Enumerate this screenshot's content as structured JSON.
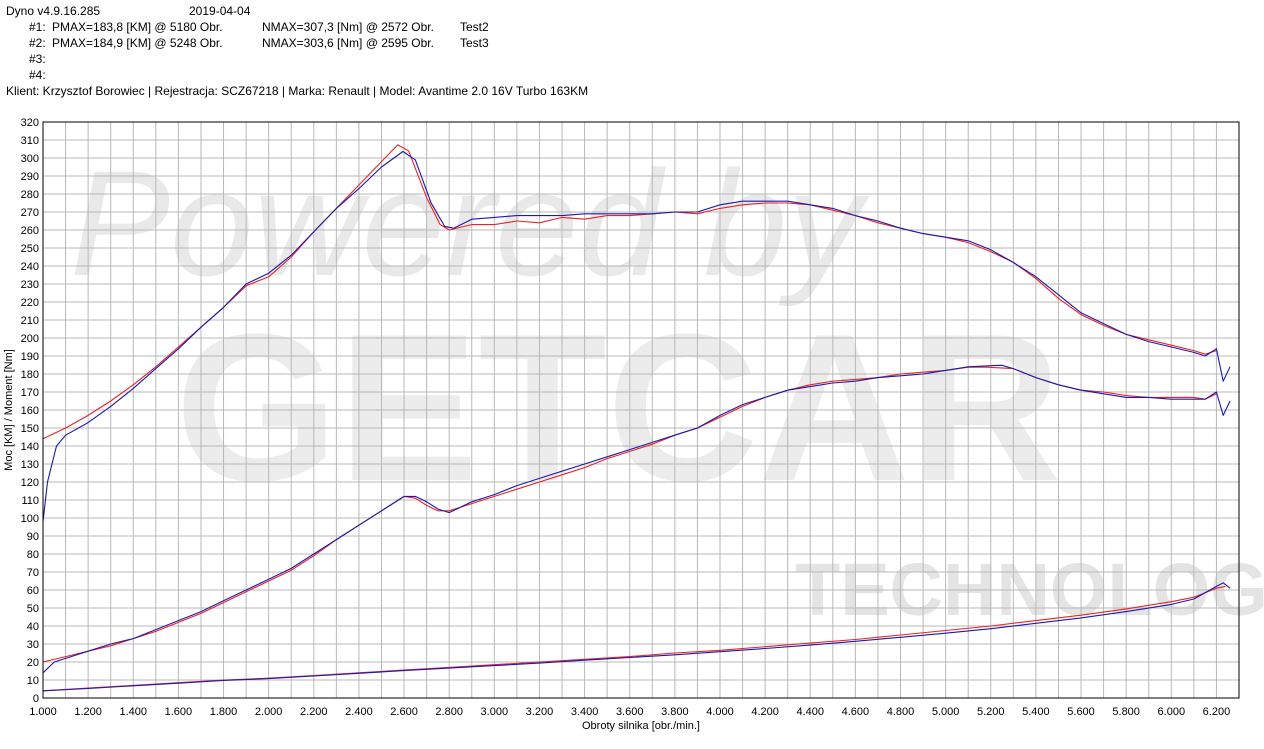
{
  "header": {
    "app_version": "Dyno v4.9.16.285",
    "date": "2019-04-04",
    "runs": [
      {
        "id": "#1:",
        "pmax": "PMAX=183,8 [KM] @ 5180 Obr.",
        "nmax": "NMAX=307,3 [Nm] @ 2572 Obr.",
        "name": "Test2"
      },
      {
        "id": "#2:",
        "pmax": "PMAX=184,9 [KM] @ 5248 Obr.",
        "nmax": "NMAX=303,6 [Nm] @ 2595 Obr.",
        "name": "Test3"
      },
      {
        "id": "#3:",
        "pmax": "",
        "nmax": "",
        "name": ""
      },
      {
        "id": "#4:",
        "pmax": "",
        "nmax": "",
        "name": ""
      }
    ],
    "client_line": "Klient: Krzysztof Borowiec | Rejestracja: SCZ67218 | Marka: Renault | Model: Avantime 2.0 16V Turbo 163KM"
  },
  "watermark": {
    "powered": "Powered by",
    "brand": "GETCAR",
    "tech": "TECHNOLOGY"
  },
  "colors": {
    "red": "#ee2222",
    "blue": "#1a1ab0",
    "grid": "#b8b8b8",
    "frame": "#000000"
  },
  "chart_data": {
    "type": "line",
    "xlabel": "Obroty silnika [obr./min.]",
    "ylabel": "Moc [KM] / Moment [Nm]",
    "xlim": [
      1000,
      6300
    ],
    "ylim": [
      0,
      320
    ],
    "x_ticks": [
      1000,
      1200,
      1400,
      1600,
      1800,
      2000,
      2200,
      2400,
      2600,
      2800,
      3000,
      3200,
      3400,
      3600,
      3800,
      4000,
      4200,
      4400,
      4600,
      4800,
      5000,
      5200,
      5400,
      5600,
      5800,
      6000,
      6200
    ],
    "x_tick_labels": [
      "1.000",
      "1.200",
      "1.400",
      "1.600",
      "1.800",
      "2.000",
      "2.200",
      "2.400",
      "2.600",
      "2.800",
      "3.000",
      "3.200",
      "3.400",
      "3.600",
      "3.800",
      "4.000",
      "4.200",
      "4.400",
      "4.600",
      "4.800",
      "5.000",
      "5.200",
      "5.400",
      "5.600",
      "5.800",
      "6.000",
      "6.200"
    ],
    "y_ticks": [
      0,
      10,
      20,
      30,
      40,
      50,
      60,
      70,
      80,
      90,
      100,
      110,
      120,
      130,
      140,
      150,
      160,
      170,
      180,
      190,
      200,
      210,
      220,
      230,
      240,
      250,
      260,
      270,
      280,
      290,
      300,
      310,
      320
    ],
    "series": [
      {
        "color": "#ee2222",
        "values": [
          [
            1000,
            144
          ],
          [
            1100,
            150
          ],
          [
            1200,
            157
          ],
          [
            1300,
            165
          ],
          [
            1400,
            174
          ],
          [
            1500,
            184
          ],
          [
            1600,
            195
          ],
          [
            1700,
            206
          ],
          [
            1800,
            217
          ],
          [
            1900,
            229
          ],
          [
            2000,
            234
          ],
          [
            2100,
            245
          ],
          [
            2200,
            259
          ],
          [
            2300,
            272
          ],
          [
            2400,
            285
          ],
          [
            2500,
            298
          ],
          [
            2572,
            307.3
          ],
          [
            2620,
            304
          ],
          [
            2700,
            278
          ],
          [
            2760,
            263
          ],
          [
            2800,
            260
          ],
          [
            2900,
            263
          ],
          [
            3000,
            263
          ],
          [
            3100,
            265
          ],
          [
            3200,
            264
          ],
          [
            3300,
            267
          ],
          [
            3400,
            266
          ],
          [
            3500,
            268
          ],
          [
            3600,
            268
          ],
          [
            3700,
            269
          ],
          [
            3800,
            270
          ],
          [
            3900,
            269
          ],
          [
            4000,
            272
          ],
          [
            4100,
            274
          ],
          [
            4200,
            275
          ],
          [
            4300,
            275
          ],
          [
            4400,
            274
          ],
          [
            4500,
            271
          ],
          [
            4600,
            268
          ],
          [
            4700,
            264
          ],
          [
            4800,
            261
          ],
          [
            4900,
            258
          ],
          [
            5000,
            256
          ],
          [
            5100,
            253
          ],
          [
            5200,
            248
          ],
          [
            5300,
            242
          ],
          [
            5400,
            233
          ],
          [
            5500,
            222
          ],
          [
            5600,
            213
          ],
          [
            5700,
            207
          ],
          [
            5800,
            202
          ],
          [
            5900,
            199
          ],
          [
            6000,
            196
          ],
          [
            6100,
            193
          ],
          [
            6150,
            191
          ],
          [
            6200,
            193
          ]
        ]
      },
      {
        "color": "#1a1ab0",
        "values": [
          [
            1000,
            98
          ],
          [
            1020,
            120
          ],
          [
            1060,
            140
          ],
          [
            1100,
            146
          ],
          [
            1200,
            153
          ],
          [
            1300,
            162
          ],
          [
            1400,
            172
          ],
          [
            1500,
            183
          ],
          [
            1600,
            194
          ],
          [
            1700,
            206
          ],
          [
            1800,
            217
          ],
          [
            1900,
            230
          ],
          [
            2000,
            236
          ],
          [
            2100,
            246
          ],
          [
            2200,
            259
          ],
          [
            2300,
            272
          ],
          [
            2400,
            283
          ],
          [
            2500,
            295
          ],
          [
            2595,
            303.6
          ],
          [
            2650,
            299
          ],
          [
            2720,
            275
          ],
          [
            2780,
            262
          ],
          [
            2820,
            261
          ],
          [
            2900,
            266
          ],
          [
            3000,
            267
          ],
          [
            3100,
            268
          ],
          [
            3200,
            268
          ],
          [
            3300,
            268
          ],
          [
            3400,
            269
          ],
          [
            3500,
            269
          ],
          [
            3600,
            269
          ],
          [
            3700,
            269
          ],
          [
            3800,
            270
          ],
          [
            3900,
            270
          ],
          [
            4000,
            274
          ],
          [
            4100,
            276
          ],
          [
            4200,
            276
          ],
          [
            4300,
            276
          ],
          [
            4400,
            274
          ],
          [
            4500,
            272
          ],
          [
            4600,
            268
          ],
          [
            4700,
            265
          ],
          [
            4800,
            261
          ],
          [
            4900,
            258
          ],
          [
            5000,
            256
          ],
          [
            5100,
            254
          ],
          [
            5200,
            249
          ],
          [
            5300,
            242
          ],
          [
            5400,
            234
          ],
          [
            5500,
            224
          ],
          [
            5600,
            214
          ],
          [
            5700,
            208
          ],
          [
            5800,
            202
          ],
          [
            5900,
            198
          ],
          [
            6000,
            195
          ],
          [
            6100,
            192
          ],
          [
            6150,
            190
          ],
          [
            6200,
            194
          ],
          [
            6230,
            176
          ],
          [
            6260,
            184
          ]
        ]
      },
      {
        "color": "#ee2222",
        "values": [
          [
            1000,
            20
          ],
          [
            1100,
            23
          ],
          [
            1200,
            26
          ],
          [
            1300,
            29
          ],
          [
            1400,
            33
          ],
          [
            1500,
            37
          ],
          [
            1600,
            42
          ],
          [
            1700,
            47
          ],
          [
            1800,
            53
          ],
          [
            1900,
            59
          ],
          [
            2000,
            65
          ],
          [
            2100,
            71
          ],
          [
            2200,
            79
          ],
          [
            2300,
            88
          ],
          [
            2400,
            96
          ],
          [
            2500,
            104
          ],
          [
            2600,
            112
          ],
          [
            2650,
            111
          ],
          [
            2700,
            107
          ],
          [
            2750,
            104
          ],
          [
            2800,
            104
          ],
          [
            2900,
            108
          ],
          [
            3000,
            112
          ],
          [
            3100,
            116
          ],
          [
            3200,
            120
          ],
          [
            3300,
            124
          ],
          [
            3400,
            128
          ],
          [
            3500,
            133
          ],
          [
            3600,
            137
          ],
          [
            3700,
            141
          ],
          [
            3800,
            146
          ],
          [
            3900,
            150
          ],
          [
            4000,
            156
          ],
          [
            4100,
            162
          ],
          [
            4200,
            167
          ],
          [
            4300,
            171
          ],
          [
            4400,
            174
          ],
          [
            4500,
            176
          ],
          [
            4600,
            177
          ],
          [
            4700,
            178
          ],
          [
            4800,
            180
          ],
          [
            4900,
            181
          ],
          [
            5000,
            182
          ],
          [
            5100,
            183.8
          ],
          [
            5180,
            183.8
          ],
          [
            5300,
            183
          ],
          [
            5400,
            178
          ],
          [
            5500,
            174
          ],
          [
            5600,
            171
          ],
          [
            5700,
            170
          ],
          [
            5800,
            168
          ],
          [
            5900,
            167
          ],
          [
            6000,
            167
          ],
          [
            6100,
            167
          ],
          [
            6150,
            166
          ],
          [
            6200,
            169
          ]
        ]
      },
      {
        "color": "#1a1ab0",
        "values": [
          [
            1000,
            14
          ],
          [
            1050,
            20
          ],
          [
            1100,
            22
          ],
          [
            1200,
            26
          ],
          [
            1300,
            30
          ],
          [
            1400,
            33
          ],
          [
            1500,
            38
          ],
          [
            1600,
            43
          ],
          [
            1700,
            48
          ],
          [
            1800,
            54
          ],
          [
            1900,
            60
          ],
          [
            2000,
            66
          ],
          [
            2100,
            72
          ],
          [
            2200,
            80
          ],
          [
            2300,
            88
          ],
          [
            2400,
            96
          ],
          [
            2500,
            104
          ],
          [
            2600,
            112
          ],
          [
            2650,
            112
          ],
          [
            2700,
            109
          ],
          [
            2750,
            105
          ],
          [
            2800,
            103
          ],
          [
            2900,
            109
          ],
          [
            3000,
            113
          ],
          [
            3100,
            118
          ],
          [
            3200,
            122
          ],
          [
            3300,
            126
          ],
          [
            3400,
            130
          ],
          [
            3500,
            134
          ],
          [
            3600,
            138
          ],
          [
            3700,
            142
          ],
          [
            3800,
            146
          ],
          [
            3900,
            150
          ],
          [
            4000,
            157
          ],
          [
            4100,
            163
          ],
          [
            4200,
            167
          ],
          [
            4300,
            171
          ],
          [
            4400,
            173
          ],
          [
            4500,
            175
          ],
          [
            4600,
            176
          ],
          [
            4700,
            178
          ],
          [
            4800,
            179
          ],
          [
            4900,
            180
          ],
          [
            5000,
            182
          ],
          [
            5100,
            184
          ],
          [
            5248,
            184.9
          ],
          [
            5300,
            183
          ],
          [
            5400,
            178
          ],
          [
            5500,
            174
          ],
          [
            5600,
            171
          ],
          [
            5700,
            169
          ],
          [
            5800,
            167
          ],
          [
            5900,
            167
          ],
          [
            6000,
            166
          ],
          [
            6100,
            166
          ],
          [
            6150,
            166
          ],
          [
            6200,
            170
          ],
          [
            6230,
            157
          ],
          [
            6260,
            165
          ]
        ]
      },
      {
        "color": "#ee2222",
        "values": [
          [
            1000,
            4
          ],
          [
            1200,
            5.5
          ],
          [
            1400,
            7
          ],
          [
            1600,
            8.5
          ],
          [
            1800,
            10
          ],
          [
            2000,
            11
          ],
          [
            2200,
            12.5
          ],
          [
            2400,
            14
          ],
          [
            2600,
            15.5
          ],
          [
            2800,
            17
          ],
          [
            3000,
            18.5
          ],
          [
            3200,
            20
          ],
          [
            3400,
            21.5
          ],
          [
            3600,
            23
          ],
          [
            3800,
            25
          ],
          [
            4000,
            26.5
          ],
          [
            4200,
            28.5
          ],
          [
            4400,
            30.5
          ],
          [
            4600,
            32.5
          ],
          [
            4800,
            35
          ],
          [
            5000,
            37.5
          ],
          [
            5200,
            40
          ],
          [
            5400,
            43
          ],
          [
            5600,
            46
          ],
          [
            5800,
            49.5
          ],
          [
            6000,
            53.5
          ],
          [
            6100,
            56
          ],
          [
            6200,
            61
          ],
          [
            6240,
            62
          ]
        ]
      },
      {
        "color": "#1a1ab0",
        "values": [
          [
            1000,
            4
          ],
          [
            1200,
            5.3
          ],
          [
            1400,
            6.8
          ],
          [
            1600,
            8.2
          ],
          [
            1800,
            9.7
          ],
          [
            2000,
            10.8
          ],
          [
            2200,
            12.2
          ],
          [
            2400,
            13.7
          ],
          [
            2600,
            15.2
          ],
          [
            2800,
            16.6
          ],
          [
            3000,
            18
          ],
          [
            3200,
            19.4
          ],
          [
            3400,
            21
          ],
          [
            3600,
            22.5
          ],
          [
            3800,
            24
          ],
          [
            4000,
            25.7
          ],
          [
            4200,
            27.5
          ],
          [
            4400,
            29.4
          ],
          [
            4600,
            31.5
          ],
          [
            4800,
            33.7
          ],
          [
            5000,
            36
          ],
          [
            5200,
            38.5
          ],
          [
            5400,
            41.5
          ],
          [
            5600,
            44.5
          ],
          [
            5800,
            48
          ],
          [
            6000,
            52
          ],
          [
            6100,
            55
          ],
          [
            6200,
            62
          ],
          [
            6230,
            64
          ],
          [
            6260,
            61
          ]
        ]
      }
    ]
  }
}
